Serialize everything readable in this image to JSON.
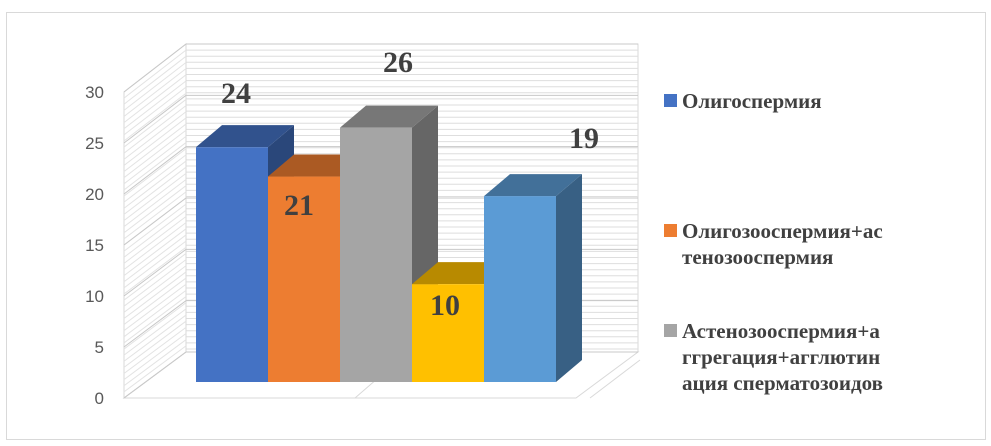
{
  "chart_data": {
    "type": "bar",
    "style": "3d-clustered-column",
    "categories": [
      "",
      "",
      "",
      "",
      ""
    ],
    "values": [
      24,
      21,
      26,
      10,
      19
    ],
    "data_labels": [
      "24",
      "21",
      "26",
      "10",
      "19"
    ],
    "colors": [
      "#4472C4",
      "#ED7D31",
      "#A5A5A5",
      "#FFC000",
      "#5B9BD5"
    ],
    "ylim": [
      0,
      30
    ],
    "y_ticks": [
      "0",
      "5",
      "10",
      "15",
      "20",
      "25",
      "30"
    ],
    "grid": true,
    "legend_position": "right",
    "legend": [
      {
        "label": "Олигоспермия",
        "color": "#4472C4"
      },
      {
        "label": "Олигозооспермия+ас\nтенозооспермия",
        "color": "#ED7D31"
      },
      {
        "label": "Астенозооспермия+а\nггрегация+агглютин\nация сперматозоидов",
        "color": "#A5A5A5"
      }
    ]
  }
}
